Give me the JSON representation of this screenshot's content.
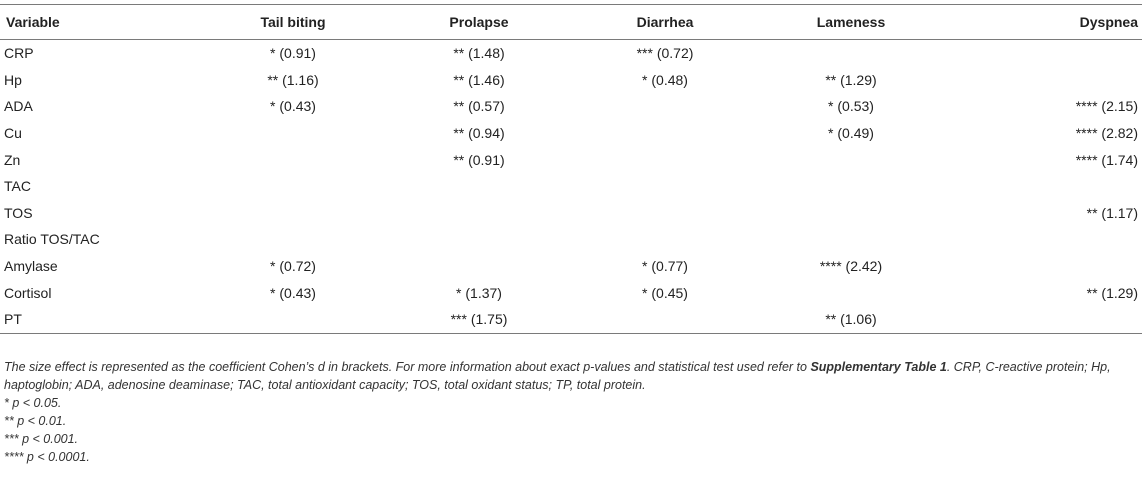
{
  "table": {
    "headers": [
      "Variable",
      "Tail biting",
      "Prolapse",
      "Diarrhea",
      "Lameness",
      "Dyspnea"
    ],
    "rows": [
      [
        "CRP",
        "* (0.91)",
        "** (1.48)",
        "*** (0.72)",
        "",
        ""
      ],
      [
        "Hp",
        "** (1.16)",
        "** (1.46)",
        "* (0.48)",
        "** (1.29)",
        ""
      ],
      [
        "ADA",
        "* (0.43)",
        "** (0.57)",
        "",
        "* (0.53)",
        "**** (2.15)"
      ],
      [
        "Cu",
        "",
        "** (0.94)",
        "",
        "* (0.49)",
        "**** (2.82)"
      ],
      [
        "Zn",
        "",
        "** (0.91)",
        "",
        "",
        "**** (1.74)"
      ],
      [
        "TAC",
        "",
        "",
        "",
        "",
        ""
      ],
      [
        "TOS",
        "",
        "",
        "",
        "",
        "** (1.17)"
      ],
      [
        "Ratio TOS/TAC",
        "",
        "",
        "",
        "",
        ""
      ],
      [
        "Amylase",
        "* (0.72)",
        "",
        "* (0.77)",
        "**** (2.42)",
        ""
      ],
      [
        "Cortisol",
        "* (0.43)",
        "* (1.37)",
        "* (0.45)",
        "",
        "** (1.29)"
      ],
      [
        "PT",
        "",
        "*** (1.75)",
        "",
        "** (1.06)",
        ""
      ]
    ]
  },
  "footnote": {
    "text_before": "The size effect is represented as the coefficient Cohen’s d in brackets. For more information about exact p-values and statistical test used refer to ",
    "bold_ref": "Supplementary Table 1",
    "text_after": ". CRP, C-reactive protein; Hp, haptoglobin; ADA, adenosine deaminase; TAC, total antioxidant capacity; TOS, total oxidant status; TP, total protein.",
    "significance": [
      "* p < 0.05.",
      "** p < 0.01.",
      "*** p < 0.001.",
      "**** p < 0.0001."
    ]
  }
}
